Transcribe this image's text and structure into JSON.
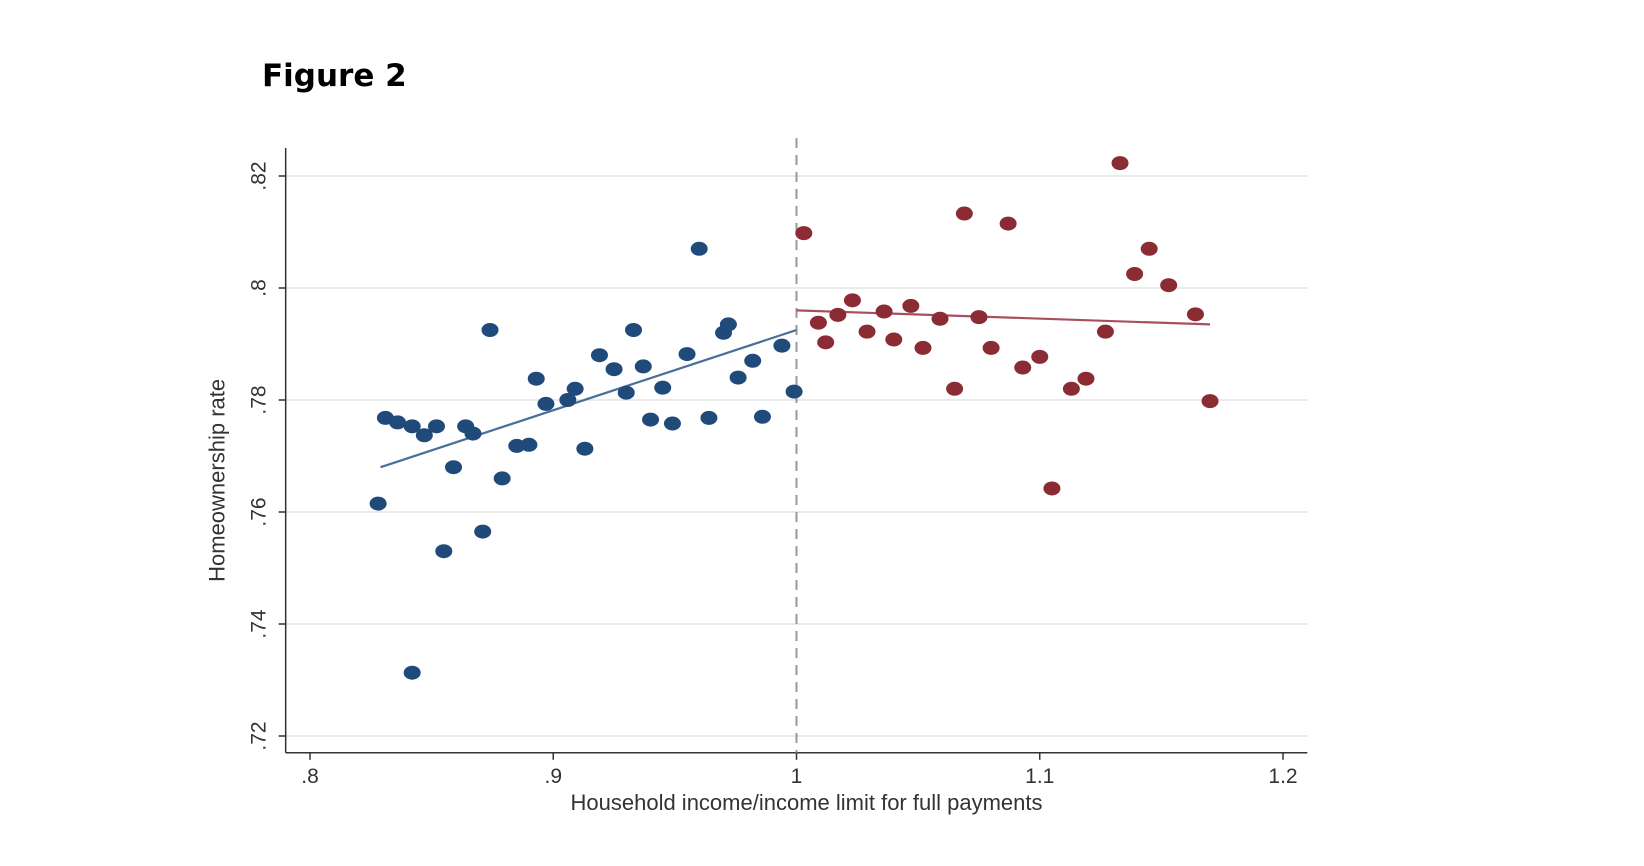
{
  "figure_title": "Figure 2",
  "colors": {
    "left_series": "#1f4a7a",
    "right_series": "#8b2c34",
    "left_fit": "#4a6f98",
    "right_fit": "#a8505a",
    "grid": "#e4e4e4",
    "axis": "#333333",
    "cutoff_line": "#9a9a9a"
  },
  "chart_data": {
    "type": "scatter",
    "xlabel": "Household income/income limit for full payments",
    "ylabel": "Homeownership rate",
    "xlim": [
      0.79,
      1.21
    ],
    "ylim": [
      0.717,
      0.825
    ],
    "x_ticks": [
      0.8,
      0.9,
      1.0,
      1.1,
      1.2
    ],
    "x_tick_labels": [
      ".8",
      ".9",
      "1",
      "1.1",
      "1.2"
    ],
    "y_ticks": [
      0.72,
      0.74,
      0.76,
      0.78,
      0.8,
      0.82
    ],
    "y_tick_labels": [
      ".72",
      ".74",
      ".76",
      ".78",
      ".8",
      ".82"
    ],
    "grid": "horizontal",
    "cutoff_x": 1.0,
    "series": [
      {
        "points": [
          [
            0.828,
            0.7615
          ],
          [
            0.831,
            0.7768
          ],
          [
            0.836,
            0.776
          ],
          [
            0.842,
            0.7313
          ],
          [
            0.842,
            0.7753
          ],
          [
            0.847,
            0.7737
          ],
          [
            0.852,
            0.7753
          ],
          [
            0.855,
            0.753
          ],
          [
            0.859,
            0.768
          ],
          [
            0.864,
            0.7753
          ],
          [
            0.867,
            0.774
          ],
          [
            0.871,
            0.7565
          ],
          [
            0.874,
            0.7925
          ],
          [
            0.879,
            0.766
          ],
          [
            0.885,
            0.7718
          ],
          [
            0.89,
            0.772
          ],
          [
            0.893,
            0.7838
          ],
          [
            0.897,
            0.7793
          ],
          [
            0.906,
            0.78
          ],
          [
            0.909,
            0.782
          ],
          [
            0.913,
            0.7713
          ],
          [
            0.919,
            0.788
          ],
          [
            0.925,
            0.7855
          ],
          [
            0.93,
            0.7813
          ],
          [
            0.933,
            0.7925
          ],
          [
            0.937,
            0.786
          ],
          [
            0.94,
            0.7765
          ],
          [
            0.945,
            0.7822
          ],
          [
            0.949,
            0.7758
          ],
          [
            0.955,
            0.7882
          ],
          [
            0.96,
            0.807
          ],
          [
            0.964,
            0.7768
          ],
          [
            0.97,
            0.792
          ],
          [
            0.972,
            0.7935
          ],
          [
            0.976,
            0.784
          ],
          [
            0.982,
            0.787
          ],
          [
            0.986,
            0.777
          ],
          [
            0.994,
            0.7897
          ],
          [
            0.999,
            0.7815
          ]
        ],
        "fit": [
          [
            0.829,
            0.768
          ],
          [
            1.0,
            0.7925
          ]
        ]
      },
      {
        "points": [
          [
            1.003,
            0.8098
          ],
          [
            1.009,
            0.7938
          ],
          [
            1.012,
            0.7903
          ],
          [
            1.017,
            0.7952
          ],
          [
            1.023,
            0.7978
          ],
          [
            1.029,
            0.7922
          ],
          [
            1.036,
            0.7958
          ],
          [
            1.04,
            0.7908
          ],
          [
            1.047,
            0.7968
          ],
          [
            1.052,
            0.7893
          ],
          [
            1.059,
            0.7945
          ],
          [
            1.065,
            0.782
          ],
          [
            1.069,
            0.8133
          ],
          [
            1.075,
            0.7948
          ],
          [
            1.08,
            0.7893
          ],
          [
            1.087,
            0.8115
          ],
          [
            1.093,
            0.7858
          ],
          [
            1.1,
            0.7877
          ],
          [
            1.105,
            0.7642
          ],
          [
            1.113,
            0.782
          ],
          [
            1.119,
            0.7838
          ],
          [
            1.127,
            0.7922
          ],
          [
            1.133,
            0.8223
          ],
          [
            1.139,
            0.8025
          ],
          [
            1.145,
            0.807
          ],
          [
            1.153,
            0.8005
          ],
          [
            1.164,
            0.7953
          ],
          [
            1.17,
            0.7798
          ]
        ],
        "fit": [
          [
            1.0,
            0.796
          ],
          [
            1.17,
            0.7935
          ]
        ]
      }
    ]
  }
}
